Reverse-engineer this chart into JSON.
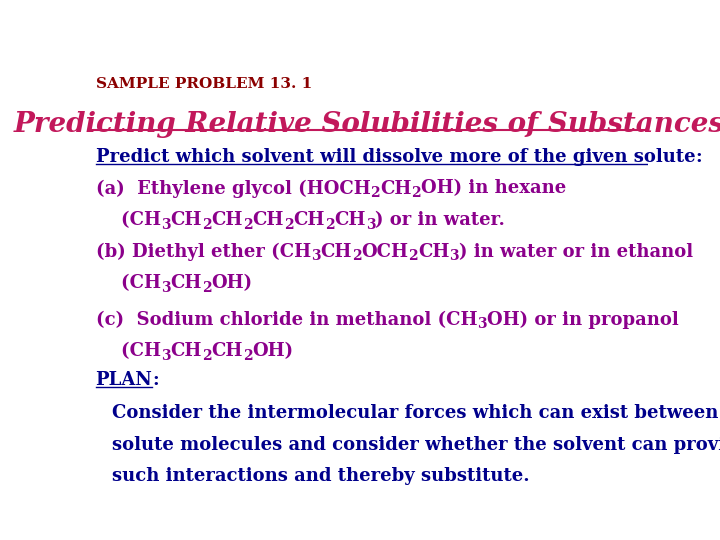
{
  "background_color": "#ffffff",
  "sample_problem_text": "SAMPLE PROBLEM 13. 1",
  "sample_problem_color": "#8B0000",
  "sample_problem_fontsize": 11,
  "title_text": "Predicting Relative Solubilities of Substances",
  "title_color": "#C2185B",
  "title_fontsize": 20,
  "body_color_purple": "#8B008B",
  "body_color_blue": "#00008B",
  "body_fontsize": 13,
  "underline_text": "Predict which solvent will dissolve more of the given solute",
  "plan_text": "PLAN",
  "plan_suffix": ":",
  "consider_line1": "Consider the intermolecular forces which can exist between",
  "consider_line2": "solute molecules and consider whether the solvent can provide",
  "consider_line3": "such interactions and thereby substitute."
}
